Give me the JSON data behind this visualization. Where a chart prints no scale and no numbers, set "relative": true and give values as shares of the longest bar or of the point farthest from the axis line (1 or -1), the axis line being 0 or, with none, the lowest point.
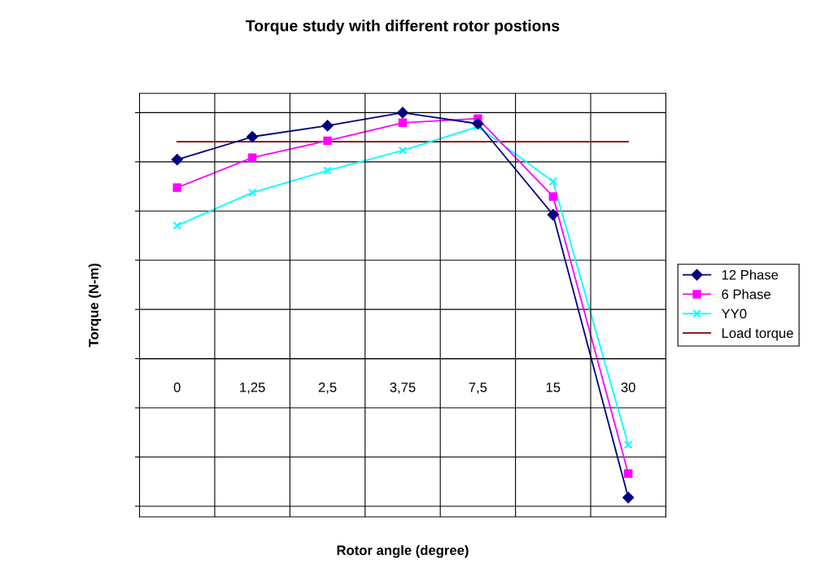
{
  "chart_data": {
    "type": "line",
    "title": "Torque study with different rotor postions",
    "xlabel": "Rotor angle (degree)",
    "ylabel": "Torque (N-m)",
    "categories": [
      "0",
      "1,25",
      "2,5",
      "3,75",
      "7,5",
      "15",
      "30"
    ],
    "relative": true,
    "grid": true,
    "legend": "right",
    "series": [
      {
        "name": "12 Phase",
        "color": "#000080",
        "marker": "diamond",
        "values": [
          0.809,
          0.902,
          0.947,
          1.0,
          0.955,
          0.585,
          -0.565
        ]
      },
      {
        "name": "6 Phase",
        "color": "#ff00ff",
        "marker": "square",
        "values": [
          0.695,
          0.817,
          0.886,
          0.959,
          0.976,
          0.659,
          -0.467
        ]
      },
      {
        "name": "YY0",
        "color": "#00ffff",
        "marker": "cross",
        "values": [
          0.541,
          0.675,
          0.764,
          0.846,
          0.943,
          0.72,
          -0.35
        ]
      },
      {
        "name": "Load torque",
        "color": "#800000",
        "marker": "none",
        "values": [
          0.882,
          0.882,
          0.882,
          0.882,
          0.882,
          0.882,
          0.882
        ]
      }
    ]
  }
}
